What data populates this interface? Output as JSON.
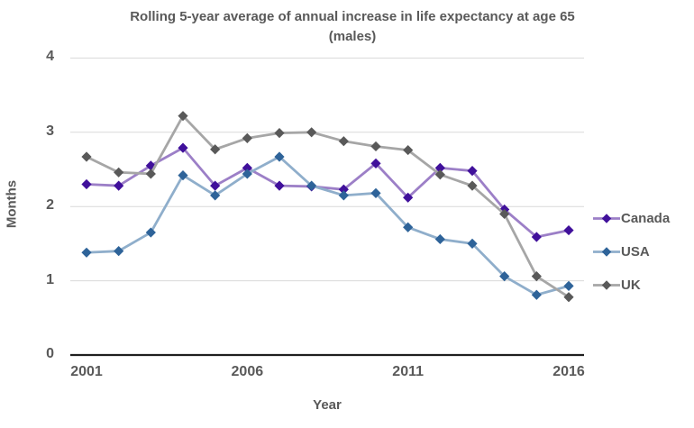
{
  "chart_data": {
    "type": "line",
    "title_line1": "Rolling 5-year average of annual increase in life expectancy at age 65",
    "title_line2": "(males)",
    "xlabel": "Year",
    "ylabel": "Months",
    "x": [
      2001,
      2002,
      2003,
      2004,
      2005,
      2006,
      2007,
      2008,
      2009,
      2010,
      2011,
      2012,
      2013,
      2014,
      2015,
      2016
    ],
    "xticks": [
      2001,
      2006,
      2011,
      2016
    ],
    "yticks": [
      0,
      1,
      2,
      3,
      4
    ],
    "ylim": [
      0,
      4
    ],
    "grid": "horizontal",
    "legend_position": "right",
    "marker": "diamond",
    "series": [
      {
        "name": "Canada",
        "marker_color": "#40109B",
        "line_color": "#9C7FC7",
        "values": [
          2.3,
          2.28,
          2.55,
          2.79,
          2.28,
          2.52,
          2.28,
          2.27,
          2.23,
          2.58,
          2.12,
          2.52,
          2.48,
          1.96,
          1.59,
          1.68
        ]
      },
      {
        "name": "USA",
        "marker_color": "#2E6399",
        "line_color": "#8FAECB",
        "values": [
          1.38,
          1.4,
          1.65,
          2.42,
          2.15,
          2.44,
          2.67,
          2.28,
          2.15,
          2.18,
          1.72,
          1.56,
          1.5,
          1.06,
          0.81,
          0.93
        ]
      },
      {
        "name": "UK",
        "marker_color": "#595959",
        "line_color": "#A6A6A6",
        "values": [
          2.67,
          2.46,
          2.44,
          3.22,
          2.77,
          2.92,
          2.99,
          3.0,
          2.88,
          2.81,
          2.76,
          2.43,
          2.28,
          1.9,
          1.06,
          0.78
        ]
      }
    ]
  },
  "colors": {
    "text": "#595959",
    "gridline": "#D9D9D9",
    "axis_line": "#1F1F1F",
    "background": "#FFFFFF"
  }
}
